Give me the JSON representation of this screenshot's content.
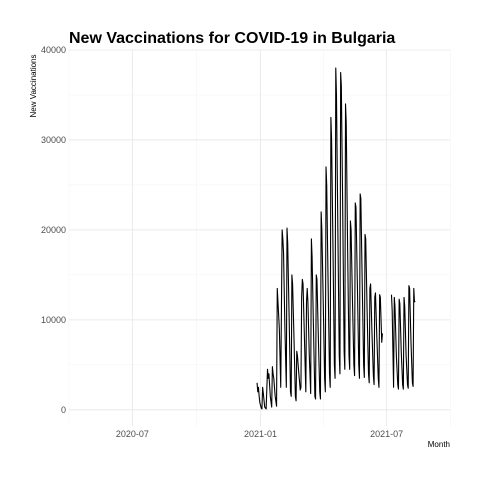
{
  "chart_data": {
    "type": "line",
    "title": "New Vaccinations for COVID-19 in Bulgaria",
    "xlabel": "Month",
    "ylabel": "New Vaccinations",
    "xlim": [
      "2020-04-01",
      "2021-09-30"
    ],
    "ylim": [
      -1800,
      40000
    ],
    "x_ticks": [
      {
        "date": "2020-07-01",
        "label": "2020-07"
      },
      {
        "date": "2021-01-01",
        "label": "2021-01"
      },
      {
        "date": "2021-07-01",
        "label": "2021-07"
      }
    ],
    "x_minor_ticks": [
      "2020-04-01",
      "2020-10-01",
      "2021-04-01",
      "2021-10-01"
    ],
    "y_ticks": [
      0,
      10000,
      20000,
      30000,
      40000
    ],
    "y_minor_ticks": [
      5000,
      15000,
      25000,
      35000
    ],
    "grid": true,
    "legend": "none",
    "line_color": "#000000",
    "series": [
      {
        "points": [
          [
            "2020-12-27",
            3000
          ],
          [
            "2020-12-28",
            2000
          ],
          [
            "2020-12-29",
            2500
          ],
          [
            "2020-12-30",
            1500
          ],
          [
            "2020-12-31",
            800
          ],
          [
            "2021-01-02",
            200
          ],
          [
            "2021-01-03",
            100
          ],
          [
            "2021-01-04",
            2500
          ],
          [
            "2021-01-05",
            1800
          ],
          [
            "2021-01-07",
            300
          ],
          [
            "2021-01-09",
            100
          ],
          [
            "2021-01-11",
            4500
          ],
          [
            "2021-01-12",
            3500
          ],
          [
            "2021-01-13",
            4000
          ],
          [
            "2021-01-15",
            1500
          ],
          [
            "2021-01-17",
            300
          ],
          [
            "2021-01-18",
            4800
          ],
          [
            "2021-01-19",
            4000
          ],
          [
            "2021-01-20",
            3500
          ],
          [
            "2021-01-22",
            1500
          ],
          [
            "2021-01-24",
            400
          ],
          [
            "2021-01-25",
            13500
          ],
          [
            "2021-01-26",
            12000
          ],
          [
            "2021-01-28",
            9000
          ],
          [
            "2021-01-30",
            2500
          ],
          [
            "2021-02-01",
            20000
          ],
          [
            "2021-02-02",
            19000
          ],
          [
            "2021-02-03",
            17500
          ],
          [
            "2021-02-05",
            9000
          ],
          [
            "2021-02-07",
            2500
          ],
          [
            "2021-02-08",
            20200
          ],
          [
            "2021-02-09",
            18500
          ],
          [
            "2021-02-11",
            10500
          ],
          [
            "2021-02-13",
            2000
          ],
          [
            "2021-02-14",
            1500
          ],
          [
            "2021-02-15",
            15000
          ],
          [
            "2021-02-16",
            14000
          ],
          [
            "2021-02-18",
            8000
          ],
          [
            "2021-02-20",
            1500
          ],
          [
            "2021-02-21",
            1000
          ],
          [
            "2021-02-22",
            6500
          ],
          [
            "2021-02-23",
            6000
          ],
          [
            "2021-02-25",
            4000
          ],
          [
            "2021-02-27",
            2200
          ],
          [
            "2021-02-28",
            2500
          ],
          [
            "2021-03-01",
            12500
          ],
          [
            "2021-03-02",
            14500
          ],
          [
            "2021-03-03",
            14000
          ],
          [
            "2021-03-05",
            8000
          ],
          [
            "2021-03-07",
            2000
          ],
          [
            "2021-03-08",
            12000
          ],
          [
            "2021-03-09",
            13500
          ],
          [
            "2021-03-10",
            12000
          ],
          [
            "2021-03-12",
            6000
          ],
          [
            "2021-03-14",
            1800
          ],
          [
            "2021-03-15",
            19000
          ],
          [
            "2021-03-16",
            17000
          ],
          [
            "2021-03-18",
            9000
          ],
          [
            "2021-03-20",
            1500
          ],
          [
            "2021-03-21",
            1200
          ],
          [
            "2021-03-22",
            15000
          ],
          [
            "2021-03-23",
            14500
          ],
          [
            "2021-03-25",
            8000
          ],
          [
            "2021-03-27",
            2000
          ],
          [
            "2021-03-28",
            1200
          ],
          [
            "2021-03-29",
            22000
          ],
          [
            "2021-03-30",
            20000
          ],
          [
            "2021-04-01",
            12000
          ],
          [
            "2021-04-03",
            3500
          ],
          [
            "2021-04-04",
            2000
          ],
          [
            "2021-04-05",
            27000
          ],
          [
            "2021-04-06",
            25000
          ],
          [
            "2021-04-08",
            14000
          ],
          [
            "2021-04-10",
            4000
          ],
          [
            "2021-04-11",
            2500
          ],
          [
            "2021-04-12",
            32500
          ],
          [
            "2021-04-13",
            30000
          ],
          [
            "2021-04-15",
            18000
          ],
          [
            "2021-04-17",
            5000
          ],
          [
            "2021-04-18",
            3500
          ],
          [
            "2021-04-19",
            38000
          ],
          [
            "2021-04-20",
            35000
          ],
          [
            "2021-04-22",
            20000
          ],
          [
            "2021-04-24",
            6000
          ],
          [
            "2021-04-25",
            4000
          ],
          [
            "2021-04-26",
            37500
          ],
          [
            "2021-04-27",
            36000
          ],
          [
            "2021-04-29",
            22000
          ],
          [
            "2021-05-01",
            6500
          ],
          [
            "2021-05-02",
            4500
          ],
          [
            "2021-05-03",
            34000
          ],
          [
            "2021-05-04",
            32000
          ],
          [
            "2021-05-06",
            18000
          ],
          [
            "2021-05-08",
            6000
          ],
          [
            "2021-05-09",
            4500
          ],
          [
            "2021-05-10",
            21000
          ],
          [
            "2021-05-11",
            20000
          ],
          [
            "2021-05-13",
            12000
          ],
          [
            "2021-05-15",
            5000
          ],
          [
            "2021-05-16",
            3800
          ],
          [
            "2021-05-17",
            23000
          ],
          [
            "2021-05-18",
            22500
          ],
          [
            "2021-05-20",
            14000
          ],
          [
            "2021-05-22",
            5000
          ],
          [
            "2021-05-23",
            3500
          ],
          [
            "2021-05-24",
            24000
          ],
          [
            "2021-05-25",
            23500
          ],
          [
            "2021-05-27",
            14000
          ],
          [
            "2021-05-29",
            5000
          ],
          [
            "2021-05-30",
            3600
          ],
          [
            "2021-05-31",
            19500
          ],
          [
            "2021-06-01",
            19000
          ],
          [
            "2021-06-03",
            11000
          ],
          [
            "2021-06-05",
            4000
          ],
          [
            "2021-06-06",
            3000
          ],
          [
            "2021-06-07",
            13500
          ],
          [
            "2021-06-08",
            14000
          ],
          [
            "2021-06-10",
            8500
          ],
          [
            "2021-06-12",
            3800
          ],
          [
            "2021-06-13",
            2800
          ],
          [
            "2021-06-14",
            12500
          ],
          [
            "2021-06-15",
            13000
          ],
          [
            "2021-06-17",
            8000
          ],
          [
            "2021-06-19",
            3500
          ],
          [
            "2021-06-20",
            2500
          ],
          [
            "2021-06-21",
            12800
          ],
          [
            "2021-06-22",
            12500
          ],
          [
            "2021-06-24",
            7500
          ],
          [
            "2021-06-25",
            8500
          ],
          null,
          [
            "2021-07-08",
            12800
          ],
          [
            "2021-07-09",
            11000
          ],
          [
            "2021-07-11",
            2500
          ],
          [
            "2021-07-12",
            12500
          ],
          [
            "2021-07-13",
            11500
          ],
          [
            "2021-07-15",
            6000
          ],
          [
            "2021-07-17",
            2800
          ],
          [
            "2021-07-18",
            2300
          ],
          [
            "2021-07-19",
            12300
          ],
          [
            "2021-07-20",
            11800
          ],
          [
            "2021-07-22",
            6500
          ],
          [
            "2021-07-24",
            2800
          ],
          [
            "2021-07-25",
            2300
          ],
          [
            "2021-07-26",
            12500
          ],
          [
            "2021-07-27",
            11500
          ],
          [
            "2021-07-29",
            6000
          ],
          [
            "2021-07-31",
            2800
          ],
          [
            "2021-08-01",
            2400
          ],
          [
            "2021-08-02",
            13800
          ],
          [
            "2021-08-03",
            13500
          ],
          [
            "2021-08-05",
            7500
          ],
          [
            "2021-08-07",
            3000
          ],
          [
            "2021-08-08",
            2600
          ],
          [
            "2021-08-09",
            13500
          ],
          [
            "2021-08-10",
            12000
          ],
          [
            "2021-08-11",
            12100
          ]
        ]
      }
    ]
  }
}
